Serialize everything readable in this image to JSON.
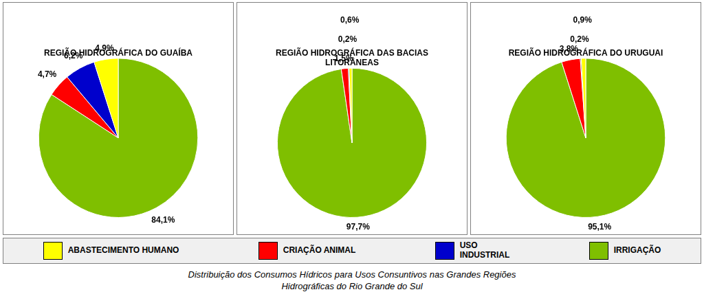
{
  "chart_data": [
    {
      "type": "pie",
      "title": "REGIÃO HIDROGRÁFICA DO GUAÍBA",
      "values": [
        84.1,
        4.7,
        6.2,
        4.9
      ],
      "value_labels": [
        "84,1%",
        "4,7%",
        "6,2%",
        "4,9%"
      ],
      "colors": [
        "#7FBF00",
        "#FF0000",
        "#0000CC",
        "#FFFF00"
      ],
      "data_labels": true
    },
    {
      "type": "pie",
      "title": "REGIÃO HIDROGRÁFICA DAS BACIAS\nLITORÂNEAS",
      "values": [
        97.7,
        1.5,
        0.2,
        0.6
      ],
      "value_labels": [
        "97,7%",
        "1,5%",
        "0,2%",
        "0,6%"
      ],
      "colors": [
        "#7FBF00",
        "#FF0000",
        "#000000",
        "#FFFF00"
      ],
      "data_labels": true
    },
    {
      "type": "pie",
      "title": "REGIÃO HIDROGRÁFICA DO URUGUAI",
      "values": [
        95.1,
        3.8,
        0.2,
        0.9
      ],
      "value_labels": [
        "95,1%",
        "3,8%",
        "0,2%",
        "0,9%"
      ],
      "colors": [
        "#7FBF00",
        "#FF0000",
        "#000000",
        "#FFFF00"
      ],
      "data_labels": true
    }
  ],
  "legend": "bottom",
  "series": [
    {
      "name": "ABASTECIMENTO HUMANO",
      "color": "#FFFF00"
    },
    {
      "name": "CRIAÇÃO ANIMAL",
      "color": "#FF0000"
    },
    {
      "name": "USO\nINDUSTRIAL",
      "color": "#0000CC"
    },
    {
      "name": "IRRIGAÇÃO",
      "color": "#7FBF00"
    }
  ],
  "title": "Distribuição dos Consumos Hídricos para Usos Consuntivos nas Grandes Regiões\nHidrográficas do Rio Grande do Sul"
}
